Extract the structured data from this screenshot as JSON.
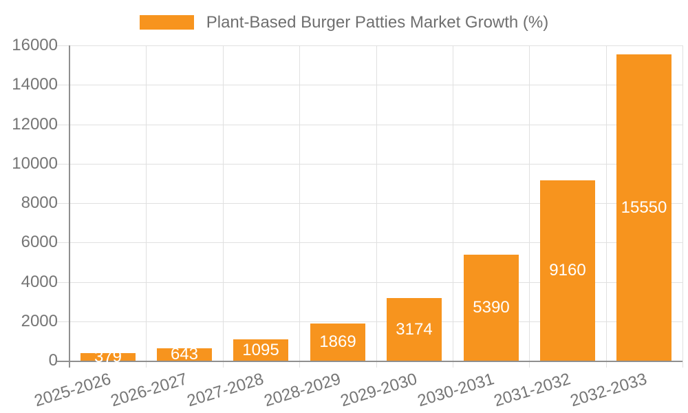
{
  "chart_data": {
    "type": "bar",
    "title": "Plant-Based Burger Patties Market Growth (%)",
    "categories": [
      "2025-2026",
      "2026-2027",
      "2027-2028",
      "2028-2029",
      "2029-2030",
      "2030-2031",
      "2031-2032",
      "2032-2033"
    ],
    "values": [
      379,
      643,
      1095,
      1869,
      3174,
      5390,
      9160,
      15550
    ],
    "value_label_position": "inside-center",
    "xlabel": "",
    "ylabel": "",
    "ylim": [
      0,
      16000
    ],
    "ytick_step": 2000,
    "ytick_labels": [
      "0",
      "2000",
      "4000",
      "6000",
      "8000",
      "10000",
      "12000",
      "14000",
      "16000"
    ],
    "grid": true,
    "legend_position": "top-center",
    "colors": {
      "bar": "#f7941e",
      "value_label": "#ffffff",
      "tick_text": "#757575",
      "title_text": "#6f6f6f",
      "gridline": "#e0e0e0",
      "axis": "#8f8f8f",
      "background": "#ffffff"
    }
  }
}
